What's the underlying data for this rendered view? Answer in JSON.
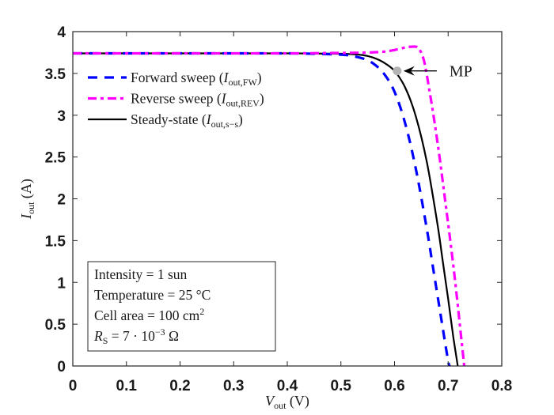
{
  "chart_data": {
    "type": "line",
    "title": "",
    "xlabel": {
      "main": "V",
      "sub": "out",
      "unit": "(V)"
    },
    "ylabel": {
      "main": "I",
      "sub": "out",
      "unit": "(A)"
    },
    "xlim": [
      0,
      0.8
    ],
    "ylim": [
      0,
      4
    ],
    "xticks": [
      0,
      0.1,
      0.2,
      0.3,
      0.4,
      0.5,
      0.6,
      0.7,
      0.8
    ],
    "xtick_labels": [
      "0",
      "0.1",
      "0.2",
      "0.3",
      "0.4",
      "0.5",
      "0.6",
      "0.7",
      "0.8"
    ],
    "yticks": [
      0,
      0.5,
      1,
      1.5,
      2,
      2.5,
      3,
      3.5,
      4
    ],
    "ytick_labels": [
      "0",
      "0.5",
      "1",
      "1.5",
      "2",
      "2.5",
      "3",
      "3.5",
      "4"
    ],
    "grid": false,
    "legend_position": "top-left",
    "series": [
      {
        "name": "Forward sweep",
        "label_main": "Forward sweep (",
        "label_sym": "I",
        "label_sub": "out,FW",
        "label_close": ")",
        "color": "#0000ff",
        "style": "dashed",
        "x": [
          0,
          0.1,
          0.2,
          0.3,
          0.4,
          0.45,
          0.5,
          0.52,
          0.54,
          0.56,
          0.58,
          0.6,
          0.62,
          0.64,
          0.66,
          0.67,
          0.68,
          0.69,
          0.7,
          0.703
        ],
        "y": [
          3.74,
          3.74,
          3.74,
          3.74,
          3.74,
          3.735,
          3.725,
          3.71,
          3.68,
          3.62,
          3.5,
          3.28,
          2.9,
          2.35,
          1.65,
          1.25,
          0.85,
          0.45,
          0.06,
          0
        ]
      },
      {
        "name": "Reverse sweep",
        "label_main": "Reverse sweep (",
        "label_sym": "I",
        "label_sub": "out,REV",
        "label_close": ")",
        "color": "#ff00ff",
        "style": "dashdot",
        "x": [
          0,
          0.1,
          0.2,
          0.3,
          0.4,
          0.5,
          0.55,
          0.58,
          0.6,
          0.62,
          0.635,
          0.645,
          0.655,
          0.665,
          0.675,
          0.685,
          0.695,
          0.705,
          0.715,
          0.725,
          0.73
        ],
        "y": [
          3.74,
          3.74,
          3.74,
          3.74,
          3.74,
          3.745,
          3.75,
          3.76,
          3.78,
          3.81,
          3.82,
          3.8,
          3.65,
          3.3,
          2.9,
          2.45,
          1.95,
          1.45,
          0.9,
          0.3,
          0
        ]
      },
      {
        "name": "Steady-state",
        "label_main": "Steady-state (",
        "label_sym": "I",
        "label_sub": "out,s−s",
        "label_close": ")",
        "color": "#000000",
        "style": "solid",
        "x": [
          0,
          0.1,
          0.2,
          0.3,
          0.4,
          0.5,
          0.54,
          0.56,
          0.58,
          0.6,
          0.62,
          0.64,
          0.66,
          0.68,
          0.69,
          0.7,
          0.71,
          0.718
        ],
        "y": [
          3.74,
          3.74,
          3.74,
          3.74,
          3.74,
          3.735,
          3.72,
          3.69,
          3.63,
          3.53,
          3.33,
          2.98,
          2.45,
          1.7,
          1.25,
          0.8,
          0.33,
          0
        ]
      }
    ],
    "annotations": [
      {
        "text": "MP",
        "x": 0.605,
        "y": 3.53,
        "marker_color": "#b3b3b3",
        "arrow": true
      }
    ],
    "info_box": {
      "position": "bottom-left",
      "lines": [
        {
          "text": "Intensity = 1 sun"
        },
        {
          "text": "Temperature = 25 °C"
        },
        {
          "text": "Cell area = 100 cm",
          "sup": "2"
        },
        {
          "sym": "R",
          "sub": "S",
          "text": " = 7 · 10",
          "sup": "−3",
          "tail": " Ω"
        }
      ]
    }
  }
}
